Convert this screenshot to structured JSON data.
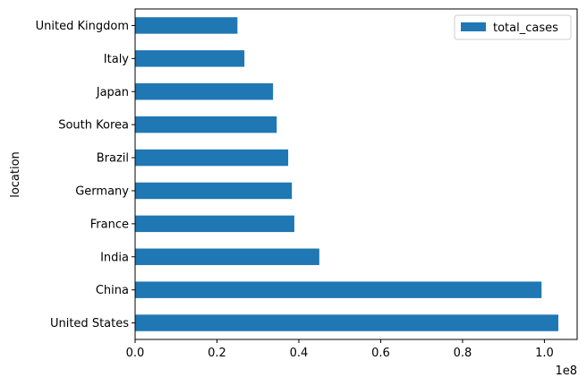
{
  "chart_data": {
    "type": "bar",
    "orientation": "horizontal",
    "categories": [
      "United States",
      "China",
      "India",
      "France",
      "Germany",
      "Brazil",
      "South Korea",
      "Japan",
      "Italy",
      "United Kingdom"
    ],
    "series": [
      {
        "name": "total_cases",
        "values": [
          103400000,
          99300000,
          45000000,
          38900000,
          38300000,
          37400000,
          34600000,
          33700000,
          26700000,
          25000000
        ]
      }
    ],
    "ylabel": "location",
    "xlabel": "",
    "xlim": [
      0,
      108000000
    ],
    "x_ticks": [
      0,
      20000000,
      40000000,
      60000000,
      80000000,
      100000000
    ],
    "x_tick_labels": [
      "0.0",
      "0.2",
      "0.4",
      "0.6",
      "0.8",
      "1.0"
    ],
    "x_offset_label": "1e8",
    "legend_position": "top-right",
    "grid": false,
    "bar_color": "#1f77b4"
  }
}
